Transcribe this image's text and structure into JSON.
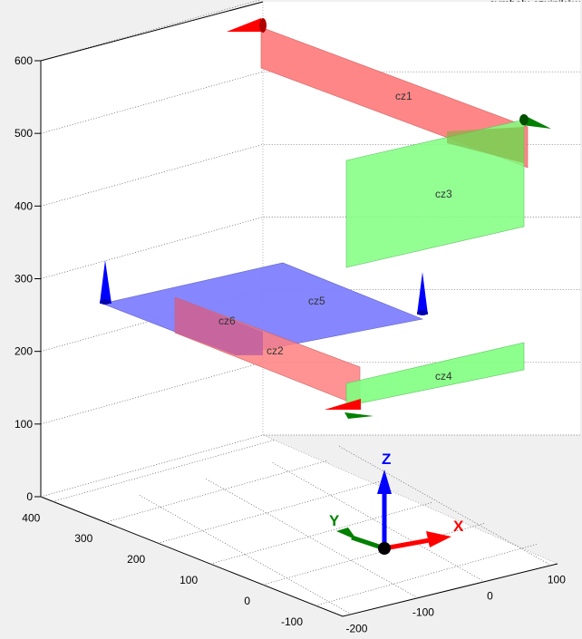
{
  "chart_data": {
    "type": "3d-patch",
    "title": "symbolu czujników",
    "zlim": [
      0,
      600
    ],
    "z_ticks": [
      0,
      100,
      200,
      300,
      400,
      500,
      600
    ],
    "x_ticks": [
      -200,
      -100,
      0,
      100
    ],
    "y_ticks": [
      -100,
      0,
      100,
      200,
      300,
      400
    ],
    "grid": true,
    "sensors": [
      {
        "label": "cz1",
        "color": "#ff8080"
      },
      {
        "label": "cz2",
        "color": "#ff8080"
      },
      {
        "label": "cz3",
        "color": "#80ff80"
      },
      {
        "label": "cz4",
        "color": "#80ff80"
      },
      {
        "label": "cz5",
        "color": "#8080ff"
      },
      {
        "label": "cz6",
        "color": "#ff8080"
      }
    ],
    "axes_symbol": {
      "x": "X",
      "y": "Y",
      "z": "Z"
    },
    "colors": {
      "x": "#ff0000",
      "y": "#008000",
      "z": "#0000ff"
    }
  }
}
